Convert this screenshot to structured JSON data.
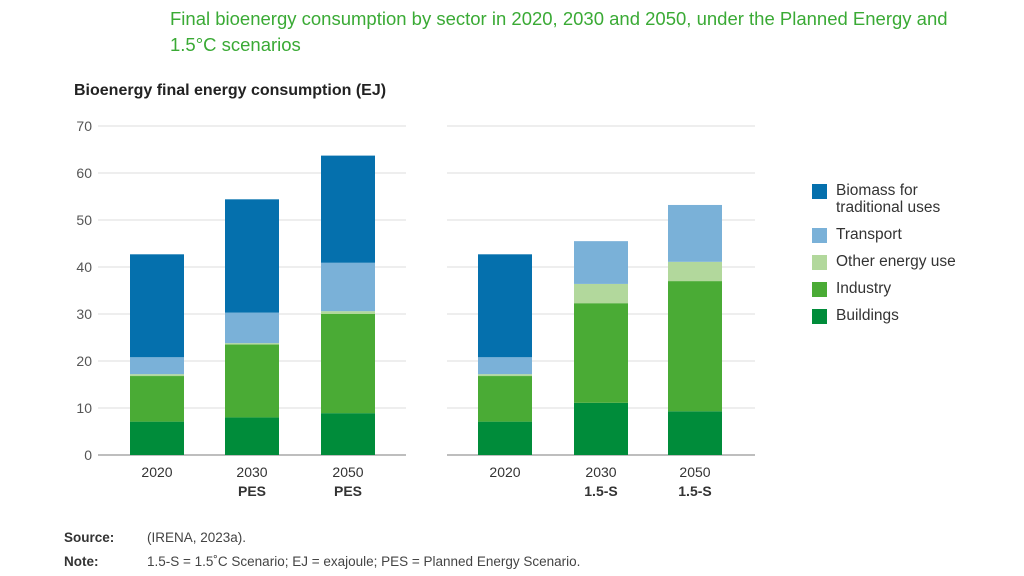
{
  "chart_data": {
    "type": "bar",
    "stacked": true,
    "title": "Final bioenergy consumption by sector in 2020, 2030 and 2050, under the Planned Energy and 1.5°C scenarios",
    "ylabel": "Bioenergy final energy consumption (EJ)",
    "xlabel": "",
    "ylim": [
      0,
      70
    ],
    "yticks": [
      "0",
      "10",
      "20",
      "30",
      "40",
      "50",
      "60",
      "70"
    ],
    "grid": true,
    "legend_position": "right",
    "series_order_bottom_to_top": [
      "Buildings",
      "Industry",
      "Other energy use",
      "Transport",
      "Biomass for traditional uses"
    ],
    "legend": [
      {
        "name": "Biomass for traditional uses",
        "color": "#0570ad"
      },
      {
        "name": "Transport",
        "color": "#7ab1d8"
      },
      {
        "name": "Other energy use",
        "color": "#b2d89c"
      },
      {
        "name": "Industry",
        "color": "#4aab35"
      },
      {
        "name": "Buildings",
        "color": "#008c3a"
      }
    ],
    "panels": [
      {
        "name": "Planned Energy Scenario",
        "categories": [
          {
            "line1": "2020",
            "line2": ""
          },
          {
            "line1": "2030",
            "line2": "PES"
          },
          {
            "line1": "2050",
            "line2": "PES"
          }
        ],
        "series": [
          {
            "name": "Buildings",
            "values": [
              7.1,
              8.0,
              8.9
            ]
          },
          {
            "name": "Industry",
            "values": [
              9.7,
              15.5,
              21.1
            ]
          },
          {
            "name": "Other energy use",
            "values": [
              0.4,
              0.3,
              0.6
            ]
          },
          {
            "name": "Transport",
            "values": [
              3.6,
              6.5,
              10.3
            ]
          },
          {
            "name": "Biomass for traditional uses",
            "values": [
              21.9,
              24.1,
              22.8
            ]
          }
        ]
      },
      {
        "name": "1.5°C Scenario",
        "categories": [
          {
            "line1": "2020",
            "line2": ""
          },
          {
            "line1": "2030",
            "line2": "1.5-S"
          },
          {
            "line1": "2050",
            "line2": "1.5-S"
          }
        ],
        "series": [
          {
            "name": "Buildings",
            "values": [
              7.1,
              11.1,
              9.3
            ]
          },
          {
            "name": "Industry",
            "values": [
              9.7,
              21.2,
              27.7
            ]
          },
          {
            "name": "Other energy use",
            "values": [
              0.4,
              4.1,
              4.1
            ]
          },
          {
            "name": "Transport",
            "values": [
              3.6,
              9.1,
              12.1
            ]
          },
          {
            "name": "Biomass for traditional uses",
            "values": [
              21.9,
              0,
              0
            ]
          }
        ]
      }
    ]
  },
  "footer": {
    "source_key": "Source:",
    "source_text": "(IRENA, 2023a).",
    "note_key": "Note:",
    "note_text": "1.5-S = 1.5˚C Scenario; EJ = exajoule; PES = Planned Energy Scenario."
  }
}
